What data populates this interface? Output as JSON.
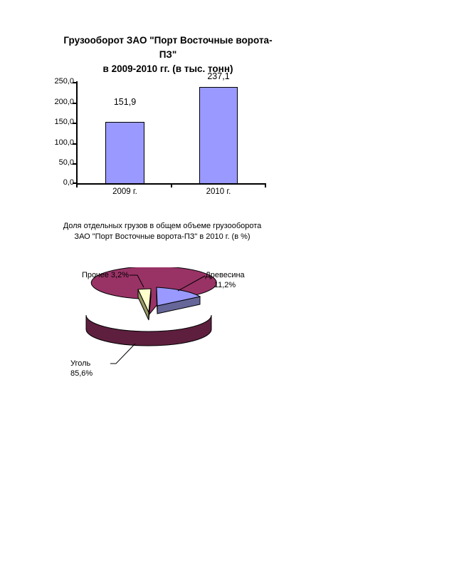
{
  "page": {
    "background": "#FFFFFF"
  },
  "chart_data": [
    {
      "type": "bar",
      "title": "Грузооборот ЗАО \"Порт Восточные ворота-ПЗ\" в 2009-2010 гг. (в тыс. тонн)",
      "title_lines": [
        "Грузооборот ЗАО \"Порт Восточные ворота-ПЗ\"",
        "в 2009-2010 гг. (в тыс. тонн)"
      ],
      "categories": [
        "2009 г.",
        "2010 г."
      ],
      "values": [
        151.9,
        237.1
      ],
      "value_labels": [
        "151,9",
        "237,1"
      ],
      "xlabel": "",
      "ylabel": "",
      "ylim": [
        0,
        250
      ],
      "ytick_step": 50,
      "ytick_labels": [
        "250,0",
        "200,0",
        "150,0",
        "100,0",
        "50,0",
        "0,0"
      ],
      "grid": false,
      "legend": "none",
      "bar_color": "#9999FF",
      "bar_border_color": "#000000",
      "axis_color": "#000000"
    },
    {
      "type": "pie",
      "title": "Доля отдельных грузов в общем объеме грузооборота ЗАО \"Порт Восточные ворота-ПЗ\" в 2010 г. (в %)",
      "title_lines": [
        "Доля отдельных грузов в общем объеме грузооборота",
        "ЗАО \"Порт Восточные ворота-ПЗ\" в 2010 г. (в %)"
      ],
      "style": "3d-exploded",
      "legend": "none",
      "slices": [
        {
          "label": "Уголь",
          "value": 85.6,
          "callout": "Уголь 85,6%",
          "color": "#993366",
          "side_color": "#5E1F3E"
        },
        {
          "label": "Древесина",
          "value": 11.2,
          "callout_lines": [
            "Древесина",
            "11,2%"
          ],
          "color": "#9999FF",
          "side_color": "#666699"
        },
        {
          "label": "Прочее",
          "value": 3.2,
          "callout": "Прочее 3,2%",
          "color": "#FFFFCC",
          "side_color": "#999966"
        }
      ]
    }
  ]
}
